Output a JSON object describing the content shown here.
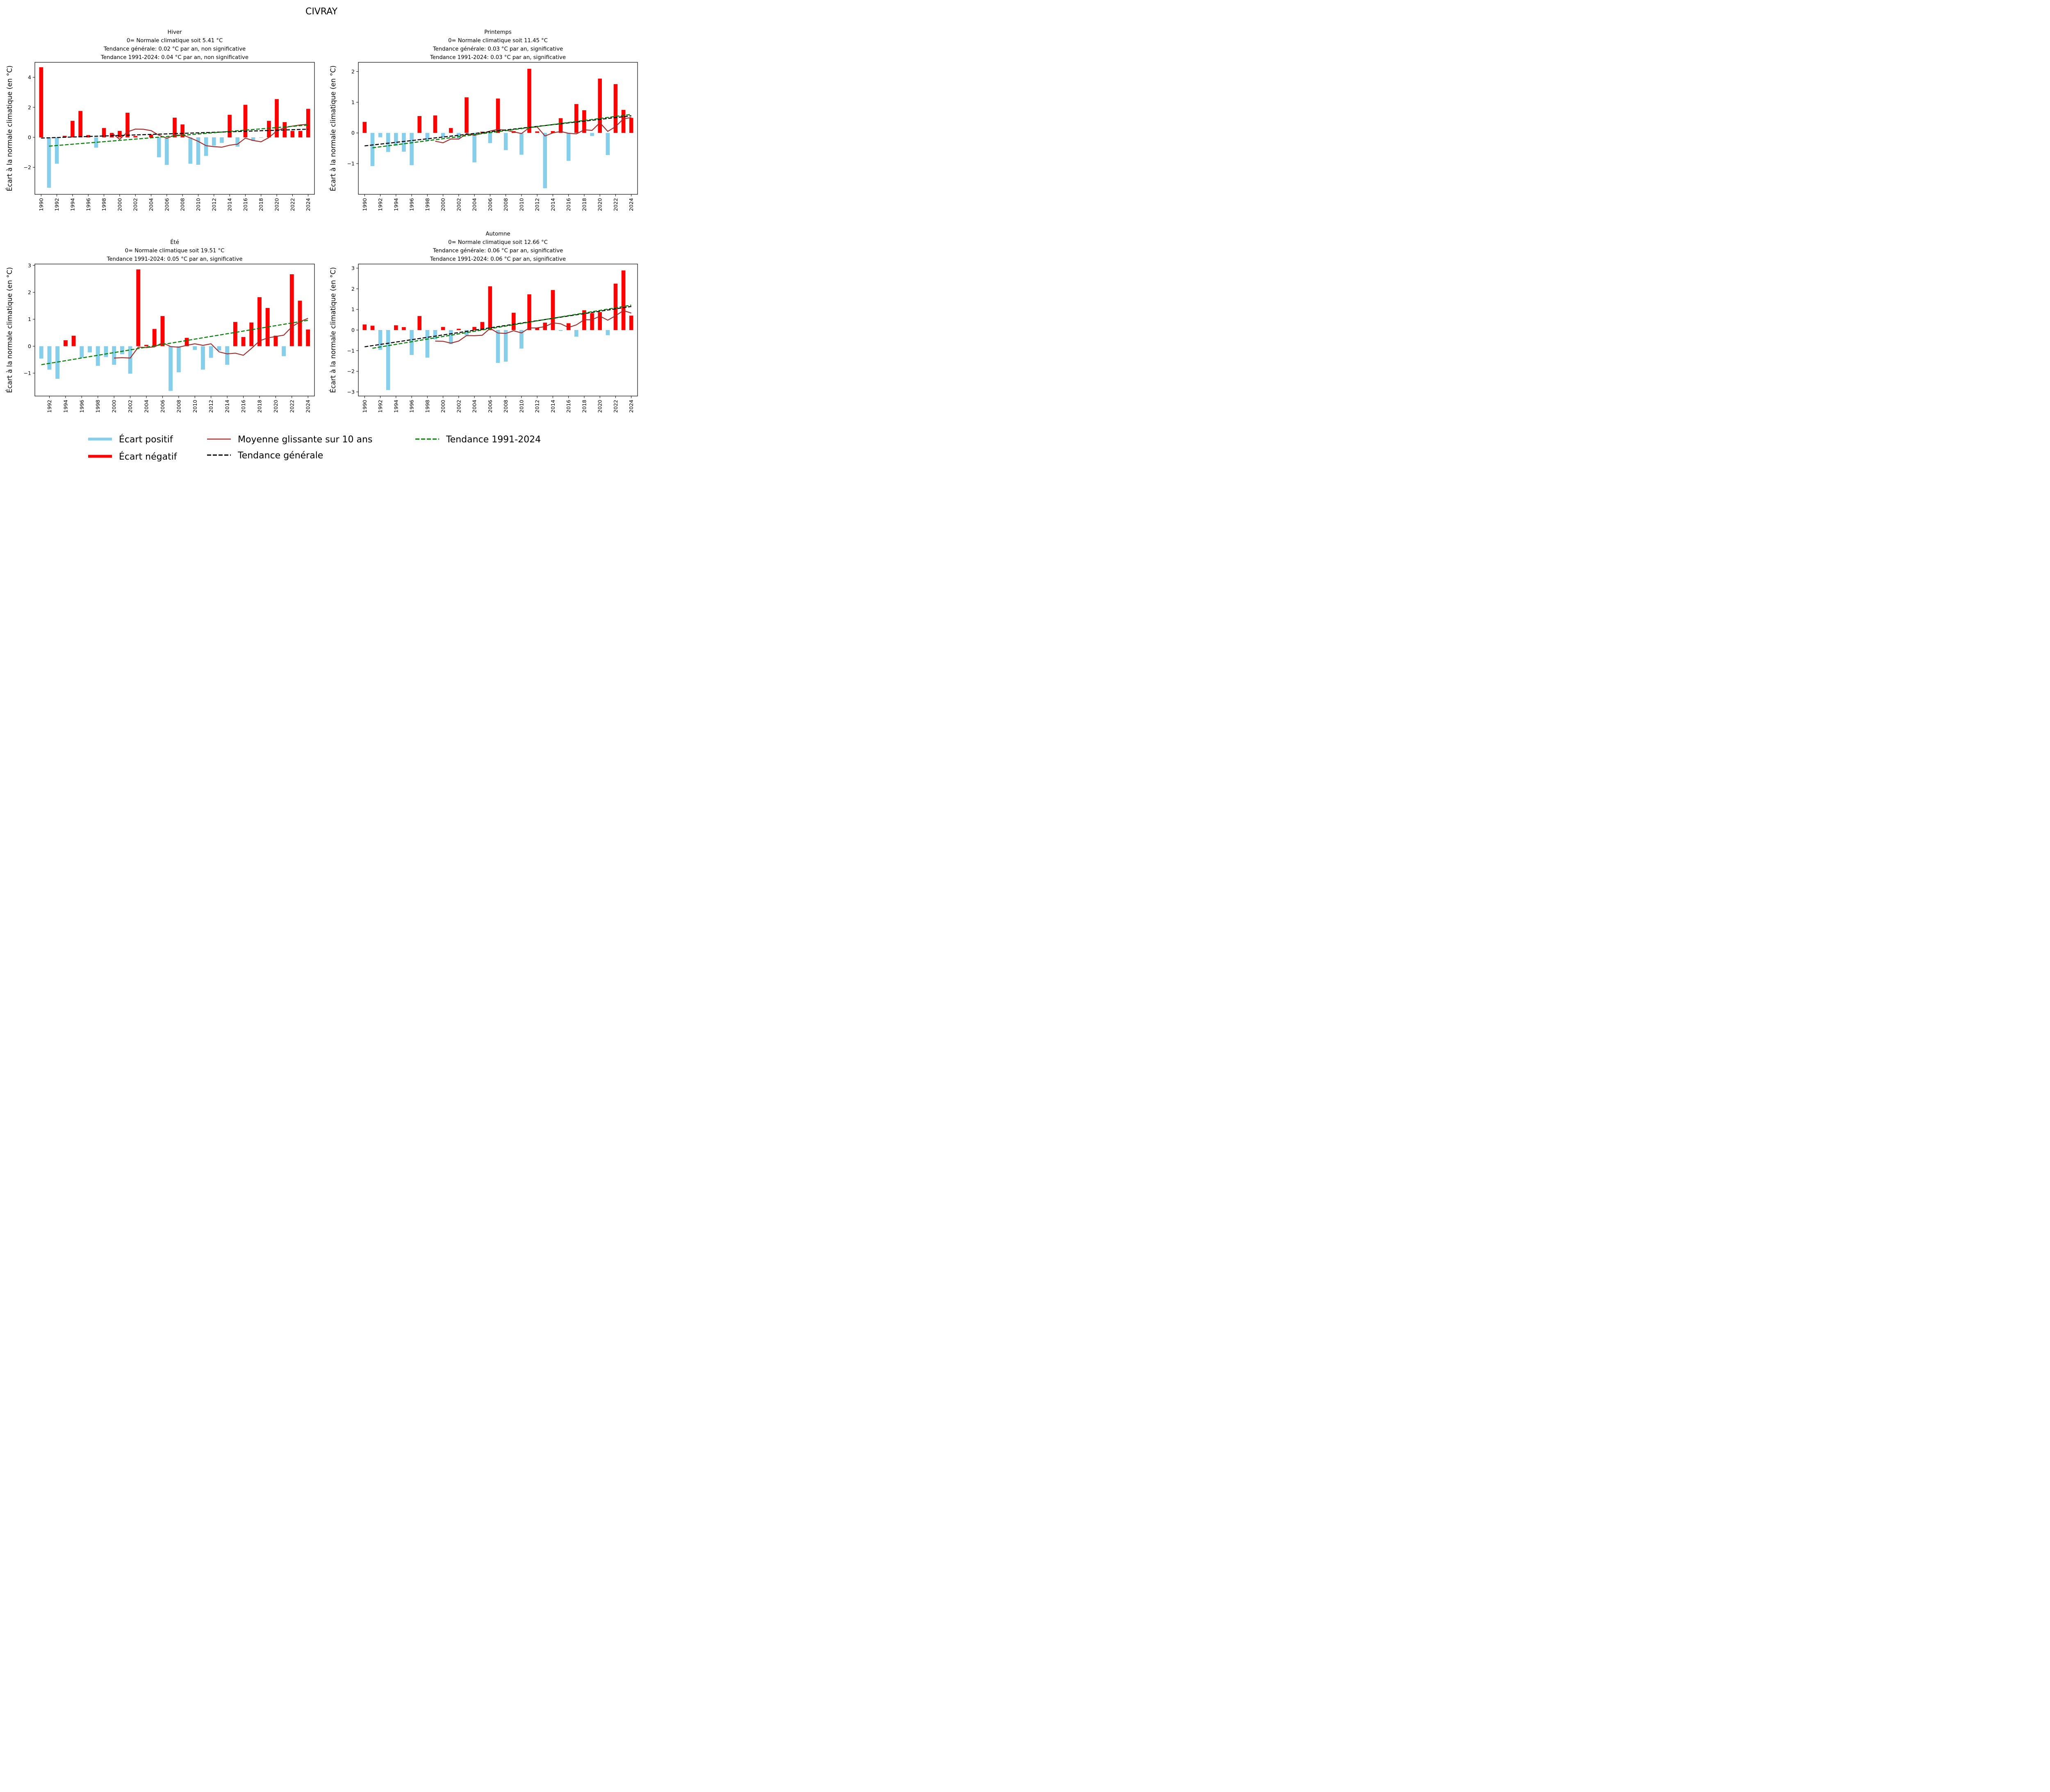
{
  "chart_data": {
    "type": "bar",
    "title": "CIVRAY",
    "colors": {
      "positive_bar": "#87CEEB",
      "negative_bar": "#FF0000",
      "moving_average": "#A52A2A",
      "trend_general": "#000000",
      "trend_recent": "#008000"
    },
    "legend": {
      "position": "bottom-center",
      "entries": [
        {
          "key": "pos",
          "label": "Écart positif"
        },
        {
          "key": "neg",
          "label": "Écart négatif"
        },
        {
          "key": "ma",
          "label": "Moyenne glissante sur 10 ans"
        },
        {
          "key": "tg",
          "label": "Tendance générale"
        },
        {
          "key": "tr",
          "label": "Tendance 1991-2024"
        }
      ]
    },
    "moving_window_years": 10,
    "recent_trend_start": 1991,
    "panels": [
      {
        "name": "hiver",
        "title_lines": [
          "Hiver",
          "0= Normale climatique soit 5.41 °C",
          "Tendance générale: 0.02  °C par an, non significative",
          "Tendance 1991-2024: 0.04 °C par an, non significative"
        ],
        "ylabel": "Écart à la normale climatique (en °C)",
        "ylim": [
          -3.8,
          5.0
        ],
        "yticks": [
          -2,
          0,
          2,
          4
        ],
        "xlim": [
          1989.2,
          2024.8
        ],
        "xticks": [
          1990,
          1992,
          1994,
          1996,
          1998,
          2000,
          2002,
          2004,
          2006,
          2008,
          2010,
          2012,
          2014,
          2016,
          2018,
          2020,
          2022,
          2024
        ],
        "show_general_trend": true,
        "years": [
          1990,
          1991,
          1992,
          1993,
          1994,
          1995,
          1996,
          1997,
          1998,
          1999,
          2000,
          2001,
          2002,
          2003,
          2004,
          2005,
          2006,
          2007,
          2008,
          2009,
          2010,
          2011,
          2012,
          2013,
          2014,
          2015,
          2016,
          2017,
          2018,
          2019,
          2020,
          2021,
          2022,
          2023,
          2024
        ],
        "values": [
          4.67,
          -3.36,
          -1.76,
          0.1,
          1.1,
          1.76,
          0.15,
          -0.69,
          0.62,
          0.29,
          0.43,
          1.64,
          0.09,
          -0.01,
          0.18,
          -1.33,
          -1.84,
          1.31,
          0.86,
          -1.76,
          -1.83,
          -1.24,
          -0.56,
          -0.37,
          1.5,
          -0.62,
          2.17,
          -0.25,
          -0.03,
          1.1,
          2.55,
          1.01,
          0.43,
          0.43,
          1.9
        ]
      },
      {
        "name": "printemps",
        "title_lines": [
          "Printemps",
          "0= Normale climatique soit 11.45 °C",
          "Tendance générale: 0.03  °C par an, significative",
          "Tendance 1991-2024: 0.03 °C par an, significative"
        ],
        "ylabel": "Écart à la normale climatique (en °C)",
        "ylim": [
          -2.0,
          2.3
        ],
        "yticks": [
          -1,
          0,
          1,
          2
        ],
        "xlim": [
          1989.2,
          2024.8
        ],
        "xticks": [
          1990,
          1992,
          1994,
          1996,
          1998,
          2000,
          2002,
          2004,
          2006,
          2008,
          2010,
          2012,
          2014,
          2016,
          2018,
          2020,
          2022,
          2024
        ],
        "show_general_trend": true,
        "years": [
          1990,
          1991,
          1992,
          1993,
          1994,
          1995,
          1996,
          1997,
          1998,
          1999,
          2000,
          2001,
          2002,
          2003,
          2004,
          2005,
          2006,
          2007,
          2008,
          2009,
          2010,
          2011,
          2012,
          2013,
          2014,
          2015,
          2016,
          2017,
          2018,
          2019,
          2020,
          2021,
          2022,
          2023,
          2024
        ],
        "values": [
          0.36,
          -1.08,
          -0.14,
          -0.62,
          -0.42,
          -0.61,
          -1.05,
          0.55,
          -0.26,
          0.57,
          -0.15,
          0.16,
          -0.18,
          1.16,
          -0.96,
          0.04,
          -0.33,
          1.12,
          -0.56,
          0.06,
          -0.71,
          2.09,
          0.05,
          -1.8,
          0.06,
          0.48,
          -0.91,
          0.94,
          0.74,
          -0.1,
          1.77,
          -0.72,
          1.59,
          0.75,
          0.49
        ]
      },
      {
        "name": "ete",
        "title_lines": [
          "Été",
          "0= Normale climatique soit 19.51 °C",
          "Tendance 1991-2024: 0.05 °C par an, significative"
        ],
        "ylabel": "Écart à la normale climatique (en °C)",
        "ylim": [
          -1.85,
          3.05
        ],
        "yticks": [
          -1,
          0,
          1,
          2,
          3
        ],
        "xlim": [
          1990.2,
          2024.8
        ],
        "xticks": [
          1992,
          1994,
          1996,
          1998,
          2000,
          2002,
          2004,
          2006,
          2008,
          2010,
          2012,
          2014,
          2016,
          2018,
          2020,
          2022,
          2024
        ],
        "show_general_trend": false,
        "years": [
          1991,
          1992,
          1993,
          1994,
          1995,
          1996,
          1997,
          1998,
          1999,
          2000,
          2001,
          2002,
          2003,
          2004,
          2005,
          2006,
          2007,
          2008,
          2009,
          2010,
          2011,
          2012,
          2013,
          2014,
          2015,
          2016,
          2017,
          2018,
          2019,
          2020,
          2021,
          2022,
          2023,
          2024
        ],
        "values": [
          -0.46,
          -0.87,
          -1.21,
          0.22,
          0.39,
          -0.43,
          -0.23,
          -0.73,
          -0.4,
          -0.69,
          -0.3,
          -1.02,
          2.85,
          0.05,
          0.64,
          1.12,
          -1.66,
          -0.97,
          0.31,
          -0.14,
          -0.87,
          -0.43,
          -0.16,
          -0.69,
          0.9,
          0.34,
          0.88,
          1.82,
          1.42,
          0.39,
          -0.37,
          2.67,
          1.69,
          0.62
        ]
      },
      {
        "name": "automne",
        "title_lines": [
          "Automne",
          "0= Normale climatique soit 12.66 °C",
          "Tendance générale: 0.06  °C par an, significative",
          "Tendance 1991-2024: 0.06 °C par an, significative"
        ],
        "ylabel": "Écart à la normale climatique (en °C)",
        "ylim": [
          -3.2,
          3.2
        ],
        "yticks": [
          -3,
          -2,
          -1,
          0,
          1,
          2,
          3
        ],
        "xlim": [
          1989.2,
          2024.8
        ],
        "xticks": [
          1990,
          1992,
          1994,
          1996,
          1998,
          2000,
          2002,
          2004,
          2006,
          2008,
          2010,
          2012,
          2014,
          2016,
          2018,
          2020,
          2022,
          2024
        ],
        "show_general_trend": true,
        "years": [
          1990,
          1991,
          1992,
          1993,
          1994,
          1995,
          1996,
          1997,
          1998,
          1999,
          2000,
          2001,
          2002,
          2003,
          2004,
          2005,
          2006,
          2007,
          2008,
          2009,
          2010,
          2011,
          2012,
          2013,
          2014,
          2015,
          2016,
          2017,
          2018,
          2019,
          2020,
          2021,
          2022,
          2023,
          2024
        ],
        "values": [
          0.27,
          0.21,
          -0.96,
          -2.91,
          0.23,
          0.14,
          -1.21,
          0.68,
          -1.34,
          -0.45,
          0.15,
          -0.68,
          0.06,
          -0.26,
          0.15,
          0.39,
          2.12,
          -1.59,
          -1.53,
          0.84,
          -0.9,
          1.73,
          0.1,
          0.36,
          1.94,
          -0.04,
          0.33,
          -0.32,
          0.96,
          0.82,
          0.87,
          -0.25,
          2.25,
          2.89,
          0.7
        ]
      }
    ]
  }
}
